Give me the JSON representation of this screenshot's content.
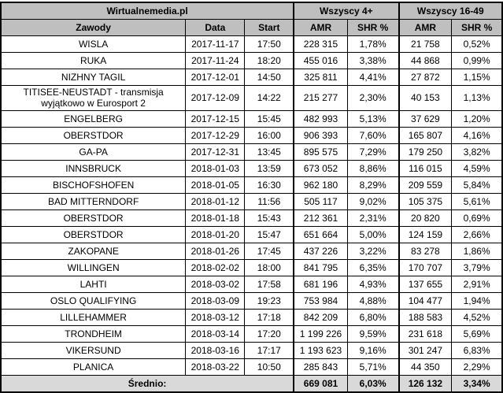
{
  "chart_data": {
    "type": "table",
    "title": "Wirtualnemedia.pl",
    "group_headers": [
      {
        "label": "Wszyscy 4+"
      },
      {
        "label": "Wszyscy 16-49"
      }
    ],
    "columns": [
      "Zawody",
      "Data",
      "Start",
      "AMR",
      "SHR %",
      "AMR",
      "SHR %"
    ],
    "rows": [
      {
        "zawody": "WISLA",
        "data": "2017-11-17",
        "start": "17:50",
        "amr_4plus": "228 315",
        "shr_4plus": "1,78%",
        "amr_1649": "21 758",
        "shr_1649": "0,52%"
      },
      {
        "zawody": "RUKA",
        "data": "2017-11-24",
        "start": "18:20",
        "amr_4plus": "455 016",
        "shr_4plus": "3,38%",
        "amr_1649": "44 868",
        "shr_1649": "0,99%"
      },
      {
        "zawody": "NIZHNY TAGIL",
        "data": "2017-12-01",
        "start": "14:50",
        "amr_4plus": "325 811",
        "shr_4plus": "4,41%",
        "amr_1649": "27 872",
        "shr_1649": "1,15%"
      },
      {
        "zawody": "TITISEE-NEUSTADT - transmisja wyjątkowo w Eurosport 2",
        "data": "2017-12-09",
        "start": "14:22",
        "amr_4plus": "215 277",
        "shr_4plus": "2,30%",
        "amr_1649": "40 153",
        "shr_1649": "1,13%"
      },
      {
        "zawody": "ENGELBERG",
        "data": "2017-12-15",
        "start": "15:45",
        "amr_4plus": "482 993",
        "shr_4plus": "5,13%",
        "amr_1649": "37 629",
        "shr_1649": "1,20%"
      },
      {
        "zawody": "OBERSTDOR",
        "data": "2017-12-29",
        "start": "16:00",
        "amr_4plus": "906 393",
        "shr_4plus": "7,60%",
        "amr_1649": "165 807",
        "shr_1649": "4,16%"
      },
      {
        "zawody": "GA-PA",
        "data": "2017-12-31",
        "start": "13:45",
        "amr_4plus": "895 575",
        "shr_4plus": "7,29%",
        "amr_1649": "179 250",
        "shr_1649": "3,82%"
      },
      {
        "zawody": "INNSBRUCK",
        "data": "2018-01-03",
        "start": "13:59",
        "amr_4plus": "673 052",
        "shr_4plus": "8,86%",
        "amr_1649": "116 015",
        "shr_1649": "4,59%"
      },
      {
        "zawody": "BISCHOFSHOFEN",
        "data": "2018-01-05",
        "start": "16:30",
        "amr_4plus": "962 180",
        "shr_4plus": "8,29%",
        "amr_1649": "209 559",
        "shr_1649": "5,84%"
      },
      {
        "zawody": "BAD MITTERNDORF",
        "data": "2018-01-12",
        "start": "11:56",
        "amr_4plus": "505 117",
        "shr_4plus": "9,02%",
        "amr_1649": "105 375",
        "shr_1649": "5,61%"
      },
      {
        "zawody": "OBERSTDOR",
        "data": "2018-01-18",
        "start": "15:43",
        "amr_4plus": "212 361",
        "shr_4plus": "2,31%",
        "amr_1649": "20 820",
        "shr_1649": "0,69%"
      },
      {
        "zawody": "OBERSTDOR",
        "data": "2018-01-20",
        "start": "15:47",
        "amr_4plus": "651 664",
        "shr_4plus": "5,00%",
        "amr_1649": "124 159",
        "shr_1649": "2,66%"
      },
      {
        "zawody": "ZAKOPANE",
        "data": "2018-01-26",
        "start": "17:45",
        "amr_4plus": "437 226",
        "shr_4plus": "3,22%",
        "amr_1649": "83 278",
        "shr_1649": "1,86%"
      },
      {
        "zawody": "WILLINGEN",
        "data": "2018-02-02",
        "start": "18:00",
        "amr_4plus": "841 795",
        "shr_4plus": "6,35%",
        "amr_1649": "170 707",
        "shr_1649": "3,79%"
      },
      {
        "zawody": "LAHTI",
        "data": "2018-03-02",
        "start": "17:58",
        "amr_4plus": "681 196",
        "shr_4plus": "4,93%",
        "amr_1649": "137 655",
        "shr_1649": "2,91%"
      },
      {
        "zawody": "OSLO QUALIFYING",
        "data": "2018-03-09",
        "start": "19:23",
        "amr_4plus": "753 984",
        "shr_4plus": "4,88%",
        "amr_1649": "104 477",
        "shr_1649": "1,94%"
      },
      {
        "zawody": "LILLEHAMMER",
        "data": "2018-03-12",
        "start": "17:18",
        "amr_4plus": "842 209",
        "shr_4plus": "6,80%",
        "amr_1649": "188 583",
        "shr_1649": "4,52%"
      },
      {
        "zawody": "TRONDHEIM",
        "data": "2018-03-14",
        "start": "17:20",
        "amr_4plus": "1 199 226",
        "shr_4plus": "9,59%",
        "amr_1649": "231 618",
        "shr_1649": "5,69%"
      },
      {
        "zawody": "VIKERSUND",
        "data": "2018-03-16",
        "start": "17:17",
        "amr_4plus": "1 193 623",
        "shr_4plus": "9,16%",
        "amr_1649": "301 247",
        "shr_1649": "6,83%"
      },
      {
        "zawody": "PLANICA",
        "data": "2018-03-22",
        "start": "10:50",
        "amr_4plus": "285 843",
        "shr_4plus": "5,71%",
        "amr_1649": "44 350",
        "shr_1649": "2,29%"
      }
    ],
    "footer": {
      "label": "Średnio:",
      "amr_4plus": "669 081",
      "shr_4plus": "6,03%",
      "amr_1649": "126 132",
      "shr_1649": "3,34%"
    },
    "colors": {
      "header_bg": "#bfbfbf",
      "footer_bg": "#d9d9d9",
      "border": "#000000",
      "row_bg": "#ffffff",
      "text": "#000000"
    },
    "layout_hints": {
      "grid": true,
      "title_position": "top-left-span",
      "group_header_row": true,
      "average_row": "bottom"
    }
  }
}
